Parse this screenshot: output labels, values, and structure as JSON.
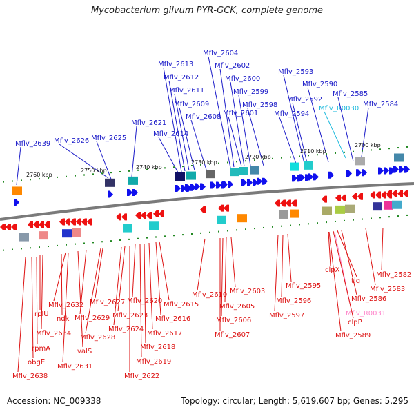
{
  "title": "Mycobacterium gilvum PYR-GCK, complete genome",
  "footer": {
    "accession": "Accession: NC_009338",
    "summary": "Topology: circular; Length: 5,619,607 bp; Genes: 5,295"
  },
  "colors": {
    "upper_label": "#1a1ac8",
    "upper_rna_label": "#22bbdd",
    "lower_label": "#dd1111",
    "lower_rna_label": "#ff88cc",
    "fwd_gene": "#1010ee",
    "rev_gene": "#ee1111",
    "backbone": "#777777",
    "tick": "#228822"
  },
  "scale": {
    "upper": [
      "2760 kbp",
      "2750 kbp",
      "2740 kbp",
      "2730 kbp",
      "2720 kbp",
      "2710 kbp",
      "2700 kbp"
    ]
  },
  "upper_labels": [
    "Mflv_2639",
    "Mflv_2626",
    "Mflv_2625",
    "Mflv_2621",
    "Mflv_2614",
    "Mflv_2613",
    "Mflv_2612",
    "Mflv_2611",
    "Mflv_2609",
    "Mflv_2608",
    "Mflv_2604",
    "Mflv_2602",
    "Mflv_2600",
    "Mflv_2599",
    "Mflv_2601",
    "Mflv_2598",
    "Mflv_2593",
    "Mflv_2592",
    "Mflv_2594",
    "Mflv_2590",
    "Mflv_R0030",
    "Mflv_2585",
    "Mflv_2584"
  ],
  "lower_labels": [
    "Mflv_2638",
    "obgE",
    "rpmA",
    "rplU",
    "Mflv_2634",
    "ndk",
    "Mflv_2632",
    "Mflv_2631",
    "valS",
    "Mflv_2629",
    "Mflv_2628",
    "Mflv_2627",
    "Mflv_2624",
    "Mflv_2623",
    "Mflv_2622",
    "Mflv_2620",
    "Mflv_2619",
    "Mflv_2618",
    "Mflv_2617",
    "Mflv_2616",
    "Mflv_2615",
    "Mflv_2610",
    "Mflv_2607",
    "Mflv_2606",
    "Mflv_2605",
    "Mflv_2603",
    "Mflv_2597",
    "Mflv_2596",
    "Mflv_2595",
    "clpX",
    "tig",
    "Mflv_2586",
    "Mflv_R0031",
    "clpP",
    "Mflv_2589",
    "Mflv_2583",
    "Mflv_2582"
  ]
}
